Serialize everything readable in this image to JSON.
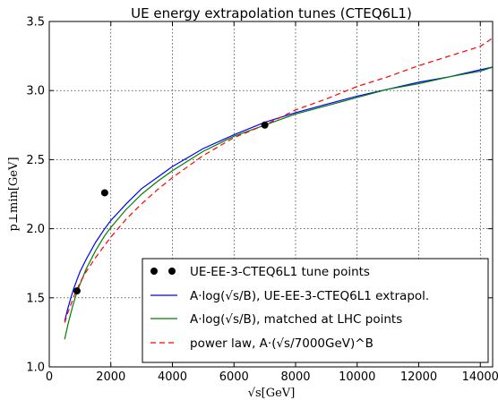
{
  "chart_data": {
    "type": "line",
    "title": "UE energy extrapolation tunes (CTEQ6L1)",
    "xlabel": "√s[GeV]",
    "ylabel": "p⊥min[GeV]",
    "xlim": [
      0,
      14400
    ],
    "ylim": [
      1.0,
      3.5
    ],
    "xticks": [
      0,
      2000,
      4000,
      6000,
      8000,
      10000,
      12000,
      14000
    ],
    "yticks": [
      1.0,
      1.5,
      2.0,
      2.5,
      3.0,
      3.5
    ],
    "xtick_labels": [
      "0",
      "2000",
      "4000",
      "6000",
      "8000",
      "10000",
      "12000",
      "14000"
    ],
    "ytick_labels": [
      "1.0",
      "1.5",
      "2.0",
      "2.5",
      "3.0",
      "3.5"
    ],
    "grid": true,
    "legend_position": "bottom-right",
    "series": [
      {
        "name": "UE-EE-3-CTEQ6L1 tune points",
        "kind": "scatter",
        "color": "#000000",
        "x": [
          900,
          1800,
          7000
        ],
        "y": [
          1.55,
          2.26,
          2.75
        ]
      },
      {
        "name": "A·log(√s/B), UE-EE-3-CTEQ6L1 extrapol.",
        "kind": "line",
        "color": "#0000ff",
        "dash": "solid",
        "x": [
          500,
          600,
          700,
          800,
          900,
          1000,
          1200,
          1500,
          1800,
          2000,
          2500,
          3000,
          3500,
          4000,
          5000,
          6000,
          7000,
          8000,
          9000,
          10000,
          11000,
          12000,
          13000,
          14000,
          14400
        ],
        "y": [
          1.33,
          1.42,
          1.5,
          1.57,
          1.63,
          1.69,
          1.78,
          1.9,
          2.0,
          2.06,
          2.18,
          2.29,
          2.37,
          2.45,
          2.58,
          2.68,
          2.77,
          2.84,
          2.9,
          2.96,
          3.01,
          3.06,
          3.1,
          3.15,
          3.17
        ]
      },
      {
        "name": "A·log(√s/B), matched at LHC points",
        "kind": "line",
        "color": "#008000",
        "dash": "solid",
        "x": [
          500,
          600,
          700,
          800,
          900,
          1000,
          1200,
          1500,
          1800,
          2000,
          2500,
          3000,
          3500,
          4000,
          5000,
          6000,
          7000,
          8000,
          9000,
          10000,
          11000,
          12000,
          13000,
          14000,
          14400
        ],
        "y": [
          1.2,
          1.3,
          1.39,
          1.47,
          1.54,
          1.6,
          1.71,
          1.84,
          1.95,
          2.01,
          2.14,
          2.25,
          2.34,
          2.42,
          2.56,
          2.67,
          2.75,
          2.83,
          2.89,
          2.95,
          3.01,
          3.05,
          3.1,
          3.14,
          3.17
        ]
      },
      {
        "name": "power law, A·(√s/7000GeV)^B",
        "kind": "line",
        "color": "#ff0000",
        "dash": "dashed",
        "x": [
          500,
          600,
          700,
          800,
          900,
          1000,
          1200,
          1500,
          1800,
          2000,
          2500,
          3000,
          3500,
          4000,
          5000,
          6000,
          7000,
          8000,
          9000,
          10000,
          11000,
          12000,
          13000,
          14000,
          14400
        ],
        "y": [
          1.32,
          1.39,
          1.45,
          1.51,
          1.56,
          1.61,
          1.69,
          1.79,
          1.88,
          1.94,
          2.07,
          2.18,
          2.28,
          2.37,
          2.53,
          2.66,
          2.75,
          2.86,
          2.94,
          3.03,
          3.1,
          3.18,
          3.25,
          3.32,
          3.38
        ]
      }
    ]
  }
}
